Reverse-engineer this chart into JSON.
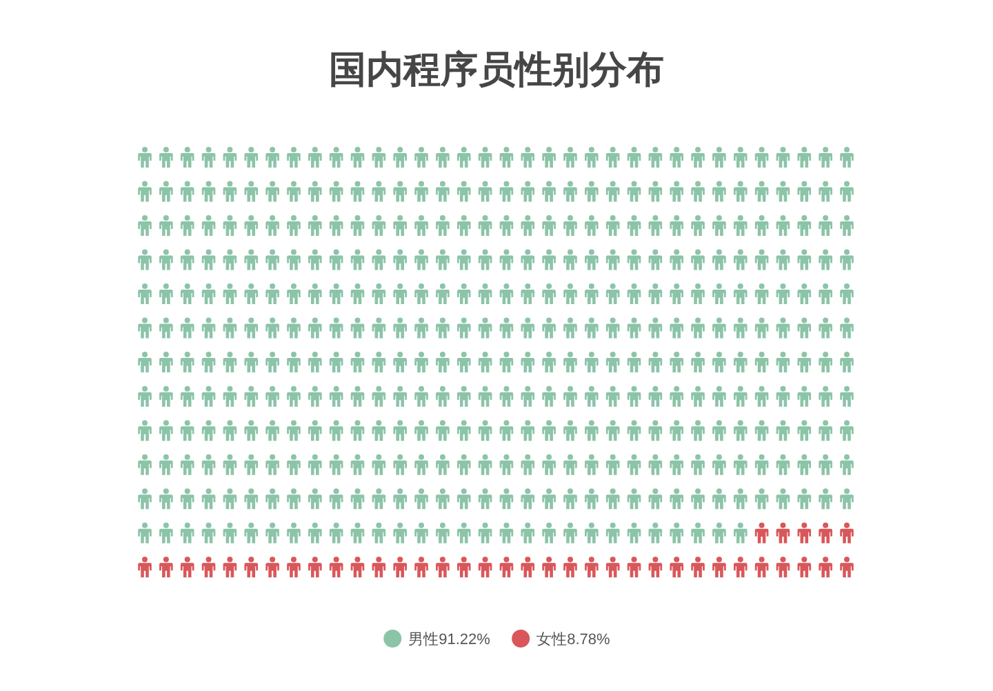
{
  "chart_data": {
    "type": "other",
    "title": "国内程序员性别分布",
    "series": [
      {
        "name": "男性",
        "color": "#8cc4a8",
        "values": [
          91.22
        ],
        "value_labels": [
          "91.22%"
        ]
      },
      {
        "name": "女性",
        "color": "#d9575a",
        "values": [
          8.78
        ],
        "value_labels": [
          "8.78%"
        ]
      }
    ],
    "legend": "bottom"
  }
}
